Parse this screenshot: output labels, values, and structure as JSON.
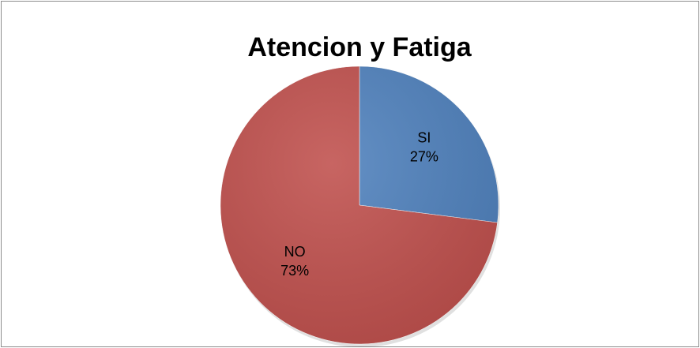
{
  "chart_data": {
    "type": "pie",
    "title": "Atencion y Fatiga",
    "categories": [
      "SI",
      "NO"
    ],
    "values": [
      27,
      73
    ],
    "value_labels": [
      "27%",
      "73%"
    ],
    "colors": [
      "#4f81bd",
      "#c0504d"
    ]
  }
}
